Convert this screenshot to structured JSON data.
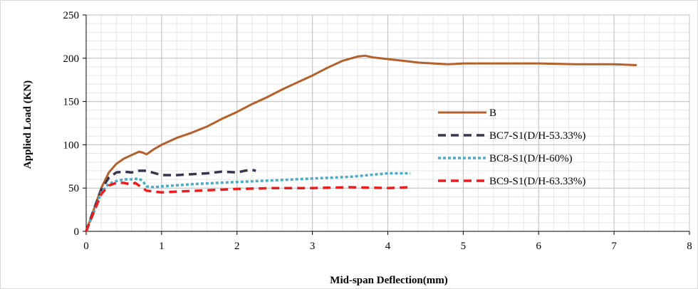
{
  "chart_data": {
    "type": "line",
    "xlabel": "Mid-span Deflection(mm)",
    "ylabel": "Applied Load (KN)",
    "xlim": [
      0,
      8
    ],
    "ylim": [
      0,
      250
    ],
    "x_ticks": [
      "0",
      "1",
      "2",
      "3",
      "4",
      "5",
      "6",
      "7",
      "8"
    ],
    "y_ticks": [
      "0",
      "50",
      "100",
      "150",
      "200",
      "250"
    ],
    "grid": true,
    "legend_position": "right-center",
    "series": [
      {
        "name": "B",
        "color": "#b5602a",
        "dash": "solid",
        "x": [
          0,
          0.1,
          0.2,
          0.3,
          0.4,
          0.5,
          0.6,
          0.7,
          0.75,
          0.8,
          0.85,
          0.9,
          1.0,
          1.2,
          1.4,
          1.6,
          1.8,
          2.0,
          2.2,
          2.4,
          2.6,
          2.8,
          3.0,
          3.2,
          3.4,
          3.6,
          3.7,
          3.8,
          4.0,
          4.2,
          4.4,
          4.6,
          4.8,
          5.0,
          5.5,
          6.0,
          6.5,
          7.0,
          7.3
        ],
        "y": [
          0,
          25,
          50,
          68,
          78,
          84,
          88,
          92,
          91,
          89,
          92,
          95,
          100,
          108,
          114,
          121,
          130,
          138,
          147,
          155,
          164,
          172,
          180,
          189,
          197,
          202,
          203,
          201,
          199,
          197,
          195,
          194,
          193,
          194,
          194,
          194,
          193,
          193,
          192
        ]
      },
      {
        "name": "BC7-S1(D/H-53.33%)",
        "color": "#3a3450",
        "dash": "dash",
        "x": [
          0,
          0.1,
          0.2,
          0.3,
          0.4,
          0.5,
          0.6,
          0.7,
          0.8,
          1.0,
          1.2,
          1.4,
          1.6,
          1.8,
          2.0,
          2.1,
          2.2,
          2.25
        ],
        "y": [
          0,
          25,
          48,
          62,
          68,
          69,
          68,
          70,
          70,
          65,
          65,
          66,
          67,
          69,
          68,
          70,
          71,
          70
        ]
      },
      {
        "name": "BC8-S1(D/H-60%)",
        "color": "#4bacc6",
        "dash": "dot",
        "x": [
          0,
          0.1,
          0.2,
          0.3,
          0.4,
          0.5,
          0.6,
          0.7,
          0.75,
          0.8,
          0.9,
          1.0,
          1.5,
          2.0,
          2.5,
          3.0,
          3.5,
          4.0,
          4.3
        ],
        "y": [
          0,
          22,
          45,
          55,
          58,
          60,
          60,
          61,
          58,
          52,
          51,
          52,
          55,
          57,
          59,
          61,
          63,
          67,
          67
        ]
      },
      {
        "name": "BC9-S1(D/H-63.33%)",
        "color": "#ee1c1c",
        "dash": "dash",
        "x": [
          0,
          0.1,
          0.2,
          0.3,
          0.4,
          0.5,
          0.6,
          0.65,
          0.7,
          0.8,
          0.9,
          1.0,
          1.2,
          1.5,
          2.0,
          2.5,
          3.0,
          3.5,
          4.0,
          4.3
        ],
        "y": [
          0,
          22,
          43,
          53,
          56,
          56,
          54,
          56,
          53,
          47,
          46,
          45,
          46,
          47,
          49,
          50,
          50,
          51,
          50,
          51
        ]
      }
    ]
  }
}
